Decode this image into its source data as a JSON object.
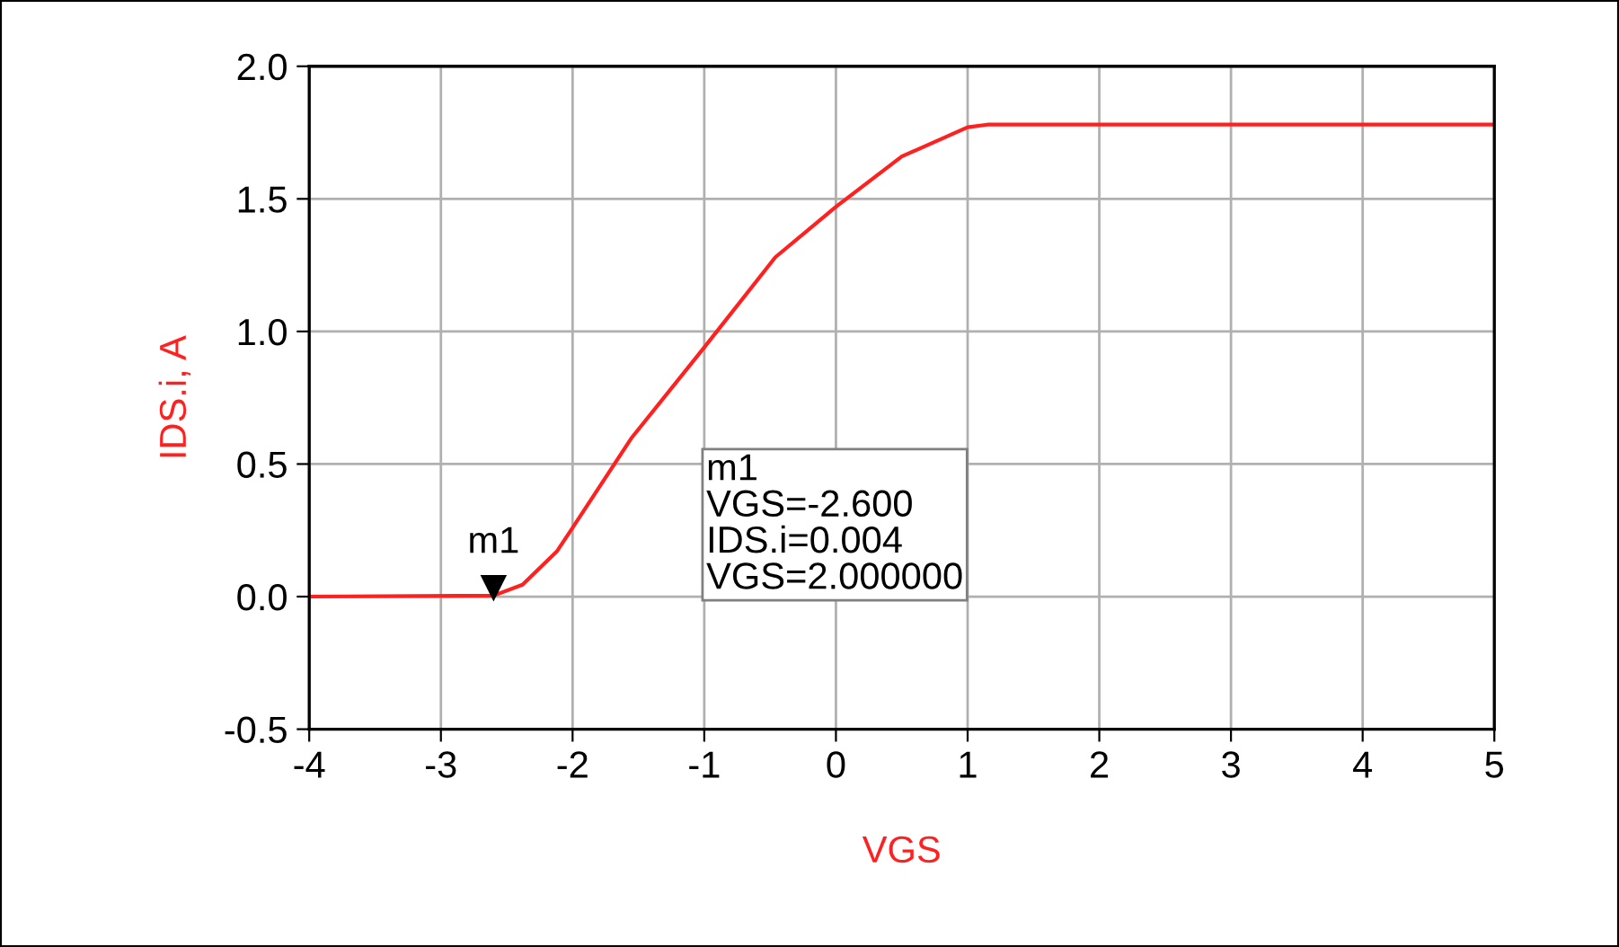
{
  "chart_data": {
    "type": "line",
    "xlabel": "VGS",
    "ylabel": "IDS.i, A",
    "x": [
      -4,
      -2.6,
      -2.38,
      -2.12,
      -2,
      -1.55,
      -1,
      -0.46,
      0,
      0.5,
      1,
      1.15,
      5
    ],
    "series": [
      {
        "color": "#ff2020",
        "values": [
          0,
          0.004,
          0.045,
          0.17,
          0.26,
          0.6,
          0.94,
          1.28,
          1.47,
          1.66,
          1.77,
          1.78,
          1.78
        ]
      }
    ],
    "xlim": [
      -4,
      5
    ],
    "xticks": [
      -4,
      -3,
      -2,
      -1,
      0,
      1,
      2,
      3,
      4,
      5
    ],
    "ylim": [
      -0.5,
      2.0
    ],
    "yticks": [
      {
        "value": -0.5,
        "label": "-0.5"
      },
      {
        "value": 0,
        "label": "0.0"
      },
      {
        "value": 0.5,
        "label": "0.5"
      },
      {
        "value": 1.0,
        "label": "1.0"
      },
      {
        "value": 1.5,
        "label": "1.5"
      },
      {
        "value": 2.0,
        "label": "2.0"
      }
    ],
    "grid": true,
    "legend": false,
    "marker": "none",
    "line_style": "solid",
    "annotations": [
      {
        "text": "m1",
        "x": -2.6,
        "y": 0.004
      },
      "m1\nVGS=-2.600\nIDS.i=0.004\nVGS=2.000000"
    ]
  }
}
